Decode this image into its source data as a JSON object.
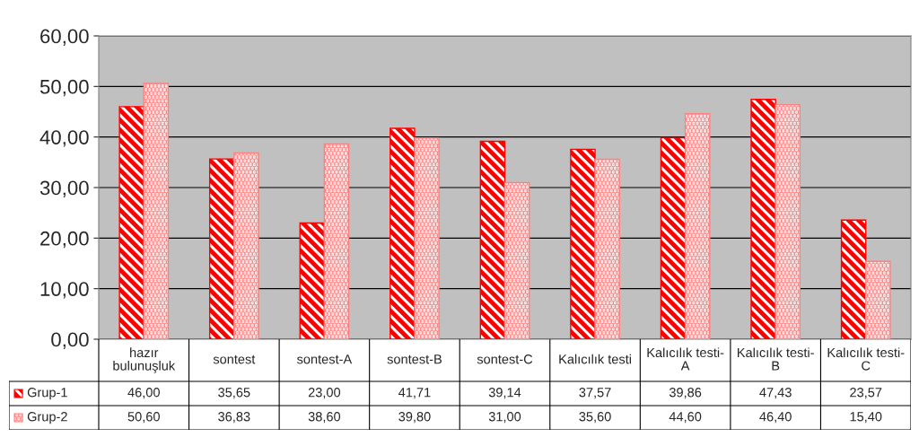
{
  "chart_data": {
    "type": "bar",
    "categories": [
      "hazır bulunuşluk",
      "sontest",
      "sontest-A",
      "sontest-B",
      "sontest-C",
      "Kalıcılık testi",
      "Kalıcılık testi-A",
      "Kalıcılık testi-B",
      "Kalıcılık testi-C"
    ],
    "series": [
      {
        "name": "Grup-1",
        "color": "#ff0000",
        "values": [
          46.0,
          35.65,
          23.0,
          41.71,
          39.14,
          37.57,
          39.86,
          47.43,
          23.57
        ],
        "value_labels": [
          "46,00",
          "35,65",
          "23,00",
          "41,71",
          "39,14",
          "37,57",
          "39,86",
          "47,43",
          "23,57"
        ]
      },
      {
        "name": "Grup-2",
        "color": "#ff8080",
        "values": [
          50.6,
          36.83,
          38.6,
          39.8,
          31.0,
          35.6,
          44.6,
          46.4,
          15.4
        ],
        "value_labels": [
          "50,60",
          "36,83",
          "38,60",
          "39,80",
          "31,00",
          "35,60",
          "44,60",
          "46,40",
          "15,40"
        ]
      }
    ],
    "ylim": [
      0,
      60
    ],
    "yticks": [
      {
        "value": 0,
        "label": "0,00"
      },
      {
        "value": 10,
        "label": "10,00"
      },
      {
        "value": 20,
        "label": "20,00"
      },
      {
        "value": 30,
        "label": "30,00"
      },
      {
        "value": 40,
        "label": "40,00"
      },
      {
        "value": 50,
        "label": "50,00"
      },
      {
        "value": 60,
        "label": "60,00"
      }
    ],
    "grid": "y",
    "legend": "bottom"
  }
}
